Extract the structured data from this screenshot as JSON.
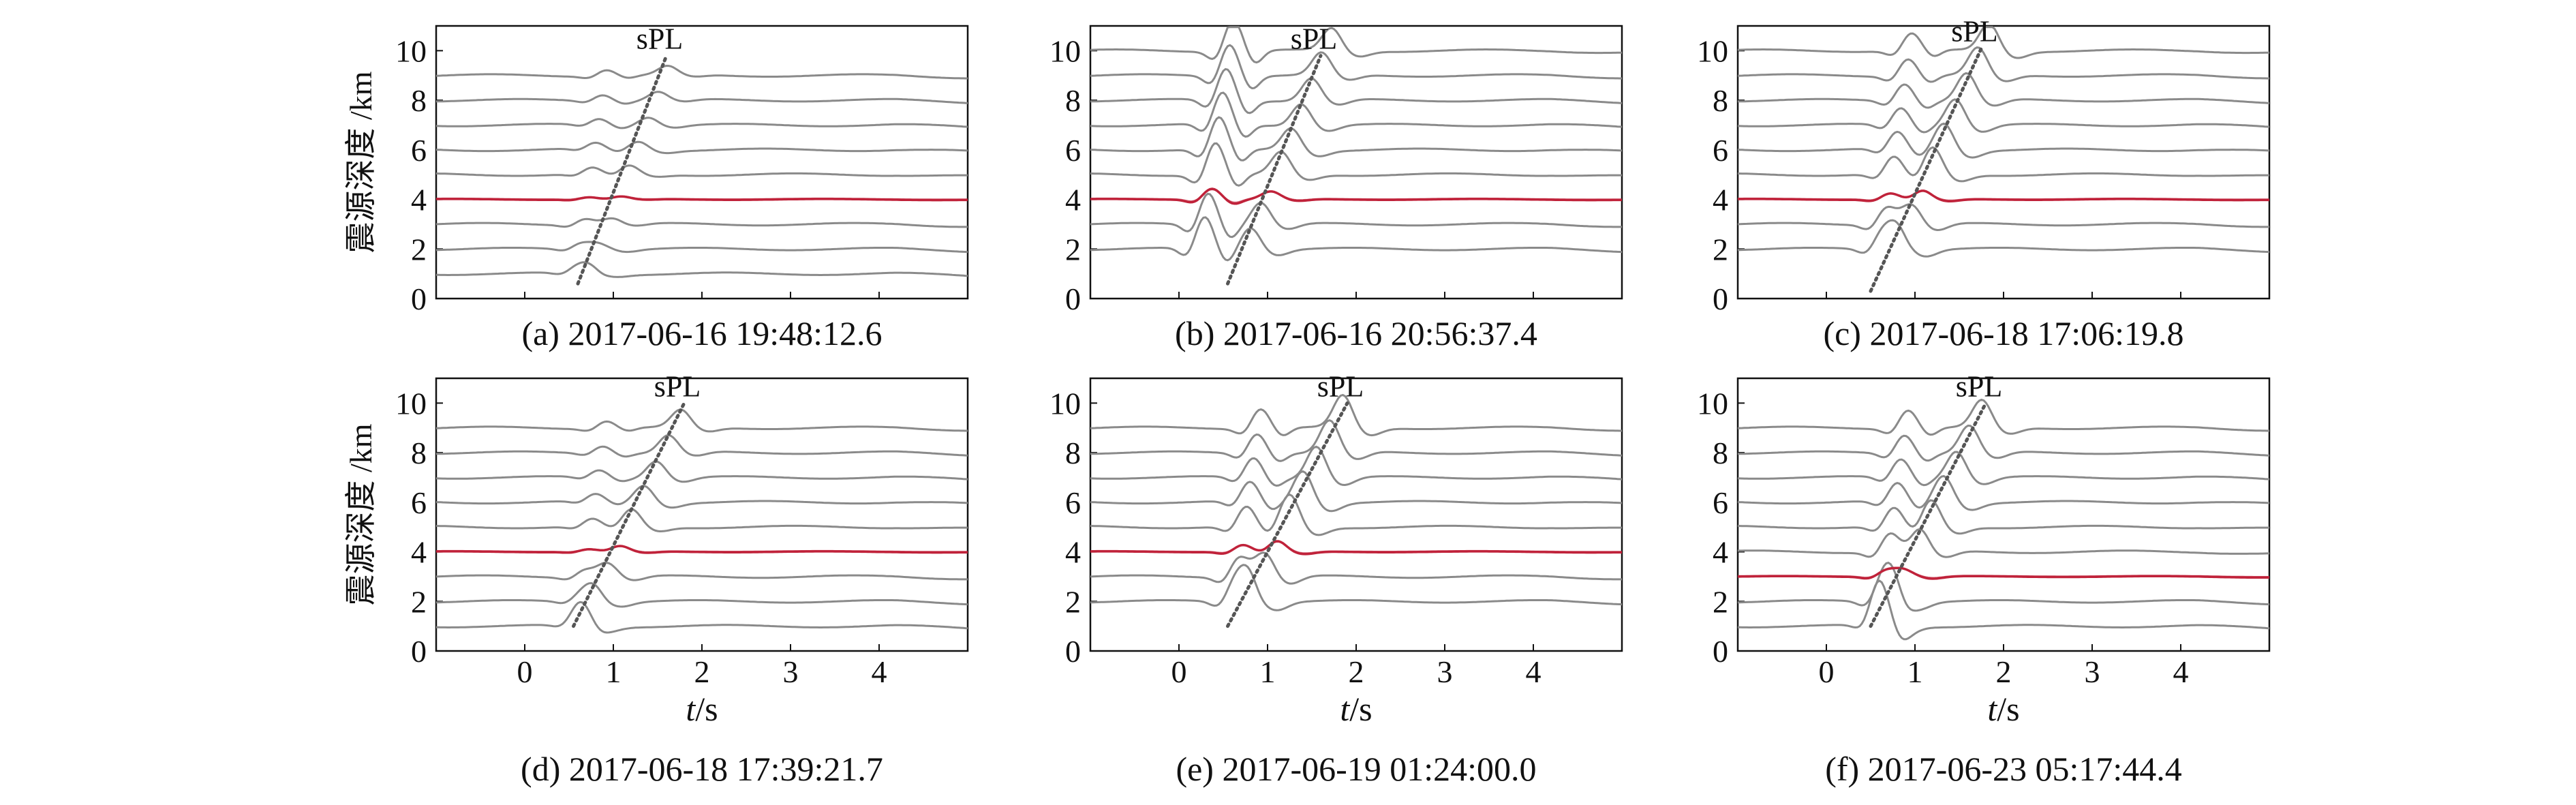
{
  "figure": {
    "y_axis_label": "震源深度 /km",
    "x_axis_label_italic": "t",
    "x_axis_label_unit": "/s",
    "phase_label": "sPL",
    "colors": {
      "trace": "#8a8a8a",
      "highlight": "#c0223a",
      "dotted_line": "#555555",
      "axis": "#111111"
    }
  },
  "chart_data": [
    {
      "type": "line",
      "caption": "(a) 2017-06-16 19:48:12.6",
      "xlim": [
        -1,
        5
      ],
      "ylim": [
        0,
        11
      ],
      "xticks": [
        0,
        1,
        2,
        3,
        4
      ],
      "yticks": [
        0,
        2,
        4,
        6,
        8,
        10
      ],
      "show_xaxis_labels": false,
      "show_ylabel": true,
      "trace_depths": [
        1,
        2,
        3,
        4,
        5,
        6,
        7,
        8,
        9
      ],
      "highlight_depth": 4,
      "spl_line": {
        "x": [
          0.6,
          1.6
        ],
        "y": [
          0.6,
          9.8
        ]
      },
      "wave": {
        "amp1": 0.25,
        "amp2": 0.35,
        "t_start": 0.55,
        "t_end": 1.6,
        "jitter": 0.05
      }
    },
    {
      "type": "line",
      "caption": "(b) 2017-06-16 20:56:37.4",
      "xlim": [
        -1,
        5
      ],
      "ylim": [
        0,
        11
      ],
      "xticks": [
        0,
        1,
        2,
        3,
        4
      ],
      "yticks": [
        0,
        2,
        4,
        6,
        8,
        10
      ],
      "show_xaxis_labels": false,
      "show_ylabel": false,
      "trace_depths": [
        2,
        3,
        4,
        5,
        6,
        7,
        8,
        9,
        10
      ],
      "highlight_depth": 4,
      "spl_line": {
        "x": [
          0.55,
          1.6
        ],
        "y": [
          0.6,
          9.8
        ]
      },
      "wave": {
        "amp1": 1.3,
        "amp2": 0.9,
        "t_start": 0.2,
        "t_end": 1.2,
        "jitter": 0.05
      }
    },
    {
      "type": "line",
      "caption": "(c) 2017-06-18 17:06:19.8",
      "xlim": [
        -1,
        5
      ],
      "ylim": [
        0,
        11
      ],
      "xticks": [
        0,
        1,
        2,
        3,
        4
      ],
      "yticks": [
        0,
        2,
        4,
        6,
        8,
        10
      ],
      "show_xaxis_labels": false,
      "show_ylabel": false,
      "trace_depths": [
        2,
        3,
        4,
        5,
        6,
        7,
        8,
        9,
        10
      ],
      "highlight_depth": 4,
      "spl_line": {
        "x": [
          0.5,
          1.75
        ],
        "y": [
          0.3,
          10.1
        ]
      },
      "wave": {
        "amp1": 0.7,
        "amp2": 1.1,
        "t_start": 0.55,
        "t_end": 1.75,
        "jitter": 0.05
      }
    },
    {
      "type": "line",
      "caption": "(d) 2017-06-18 17:39:21.7",
      "xlim": [
        -1,
        5
      ],
      "ylim": [
        0,
        11
      ],
      "xticks": [
        0,
        1,
        2,
        3,
        4
      ],
      "yticks": [
        0,
        2,
        4,
        6,
        8,
        10
      ],
      "show_xaxis_labels": true,
      "show_ylabel": true,
      "trace_depths": [
        1,
        2,
        3,
        4,
        5,
        6,
        7,
        8,
        9
      ],
      "highlight_depth": 4,
      "spl_line": {
        "x": [
          0.55,
          1.8
        ],
        "y": [
          1.0,
          10.0
        ]
      },
      "wave": {
        "amp1": 0.3,
        "amp2": 0.7,
        "t_start": 0.55,
        "t_end": 1.75,
        "jitter": 0.05
      }
    },
    {
      "type": "line",
      "caption": "(e) 2017-06-19 01:24:00.0",
      "xlim": [
        -1,
        5
      ],
      "ylim": [
        0,
        11
      ],
      "xticks": [
        0,
        1,
        2,
        3,
        4
      ],
      "yticks": [
        0,
        2,
        4,
        6,
        8,
        10
      ],
      "show_xaxis_labels": true,
      "show_ylabel": false,
      "trace_depths": [
        2,
        3,
        4,
        5,
        6,
        7,
        8,
        9
      ],
      "highlight_depth": 4,
      "spl_line": {
        "x": [
          0.55,
          1.9
        ],
        "y": [
          1.0,
          10.0
        ]
      },
      "wave": {
        "amp1": 0.8,
        "amp2": 1.3,
        "t_start": 0.55,
        "t_end": 1.9,
        "jitter": 0.05
      }
    },
    {
      "type": "line",
      "caption": "(f) 2017-06-23 05:17:44.4",
      "xlim": [
        -1,
        5
      ],
      "ylim": [
        0,
        11
      ],
      "xticks": [
        0,
        1,
        2,
        3,
        4
      ],
      "yticks": [
        0,
        2,
        4,
        6,
        8,
        10
      ],
      "show_xaxis_labels": true,
      "show_ylabel": false,
      "trace_depths": [
        1,
        2,
        4,
        5,
        6,
        7,
        8,
        9
      ],
      "highlight_depth": 3,
      "spl_line": {
        "x": [
          0.5,
          1.8
        ],
        "y": [
          1.0,
          10.0
        ]
      },
      "wave": {
        "amp1": 0.75,
        "amp2": 1.1,
        "t_start": 0.55,
        "t_end": 1.8,
        "jitter": 0.05
      }
    }
  ]
}
